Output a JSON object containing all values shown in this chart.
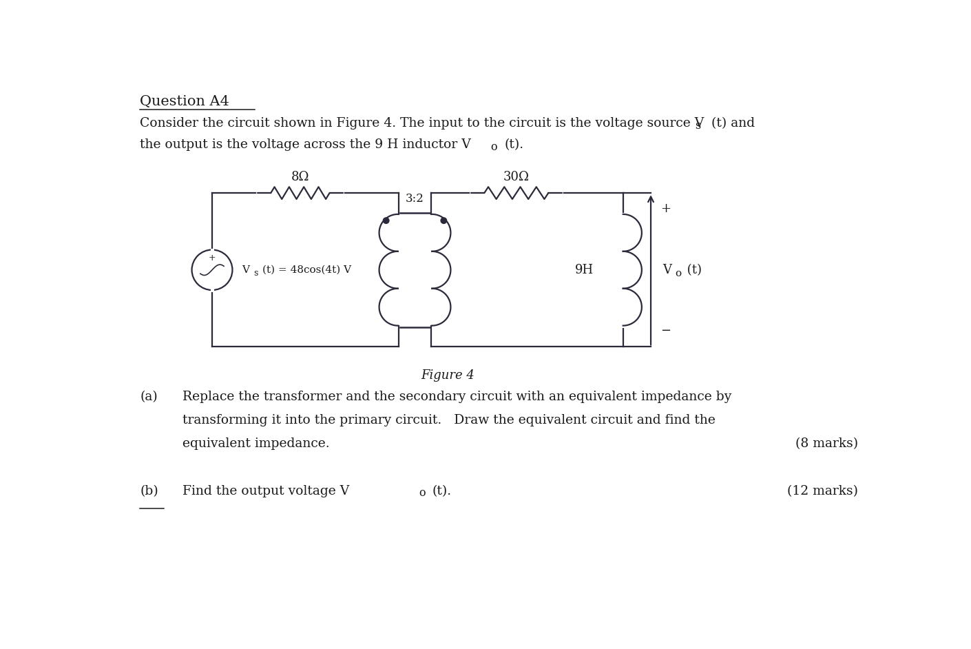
{
  "title": "Question A4",
  "body_line1": "Consider the circuit shown in Figure 4. The input to the circuit is the voltage source V",
  "body_line1b": "s",
  "body_line1c": "(t) and",
  "body_line2": "the output is the voltage across the 9 H inductor V",
  "body_line2b": "o",
  "body_line2c": "(t).",
  "figure_label": "Figure 4",
  "part_a_label": "(a)",
  "part_a_line1": "Replace the transformer and the secondary circuit with an equivalent impedance by",
  "part_a_line2": "transforming it into the primary circuit.   Draw the equivalent circuit and find the",
  "part_a_line3": "equivalent impedance.",
  "part_a_marks": "(8 marks)",
  "part_b_label": "(b)",
  "part_b_text": "Find the output voltage V",
  "part_b_text2": "o",
  "part_b_text3": "(t).",
  "part_b_marks": "(12 marks)",
  "resistor1_label": "8Ω",
  "resistor2_label": "30Ω",
  "inductor_label": "9H",
  "transformer_label": "3:2",
  "source_label": "V",
  "source_label_sub": "s",
  "source_label_rest": "(t) = 48cos(4t) V",
  "vo_label_pre": "V",
  "vo_label_sub": "o",
  "vo_label_post": " (t)",
  "plus_label": "+",
  "minus_label": "−",
  "bg_color": "#ffffff",
  "line_color": "#2a2a3a",
  "text_color": "#1a1a1a",
  "font_size_title": 15,
  "font_size_body": 13.5,
  "font_size_labels": 13,
  "font_size_small": 11
}
